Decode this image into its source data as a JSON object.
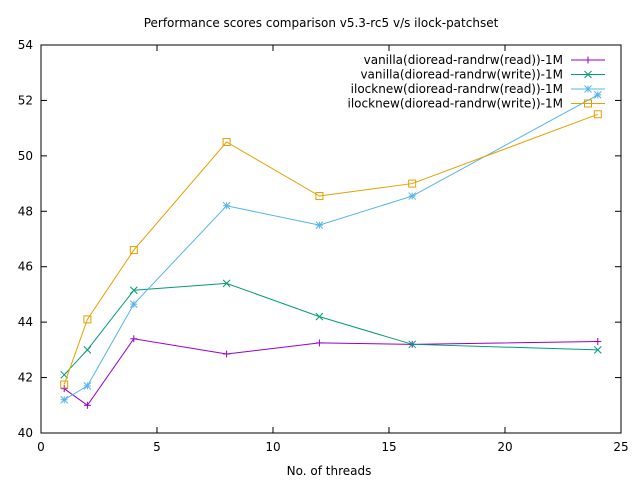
{
  "chart_data": {
    "type": "line",
    "title": "Performance scores comparison v5.3-rc5 v/s ilock-patchset",
    "xlabel": "No. of threads",
    "ylabel": "",
    "xlim": [
      0,
      25
    ],
    "ylim": [
      40,
      54
    ],
    "xticks": [
      0,
      5,
      10,
      15,
      20,
      25
    ],
    "yticks": [
      40,
      42,
      44,
      46,
      48,
      50,
      52,
      54
    ],
    "grid": false,
    "legend_position": "top-right",
    "series": [
      {
        "name": "vanilla(dioread-randrw(read))-1M",
        "color": "#9400d3",
        "marker": "plus",
        "x": [
          1,
          2,
          4,
          8,
          12,
          16,
          24
        ],
        "values": [
          41.6,
          41.0,
          43.4,
          42.85,
          43.25,
          43.2,
          43.3
        ]
      },
      {
        "name": "vanilla(dioread-randrw(write))-1M",
        "color": "#009e73",
        "marker": "cross",
        "x": [
          1,
          2,
          4,
          8,
          12,
          16,
          24
        ],
        "values": [
          42.1,
          43.0,
          45.15,
          45.4,
          44.2,
          43.2,
          43.0
        ]
      },
      {
        "name": "ilocknew(dioread-randrw(read))-1M",
        "color": "#56b4e9",
        "marker": "star",
        "x": [
          1,
          2,
          4,
          8,
          12,
          16,
          24
        ],
        "values": [
          41.2,
          41.7,
          44.65,
          48.2,
          47.5,
          48.55,
          52.2
        ]
      },
      {
        "name": "ilocknew(dioread-randrw(write))-1M",
        "color": "#e69f00",
        "marker": "square",
        "x": [
          1,
          2,
          4,
          8,
          12,
          16,
          24
        ],
        "values": [
          41.75,
          44.1,
          46.6,
          50.5,
          48.55,
          49.0,
          51.5
        ]
      }
    ]
  }
}
